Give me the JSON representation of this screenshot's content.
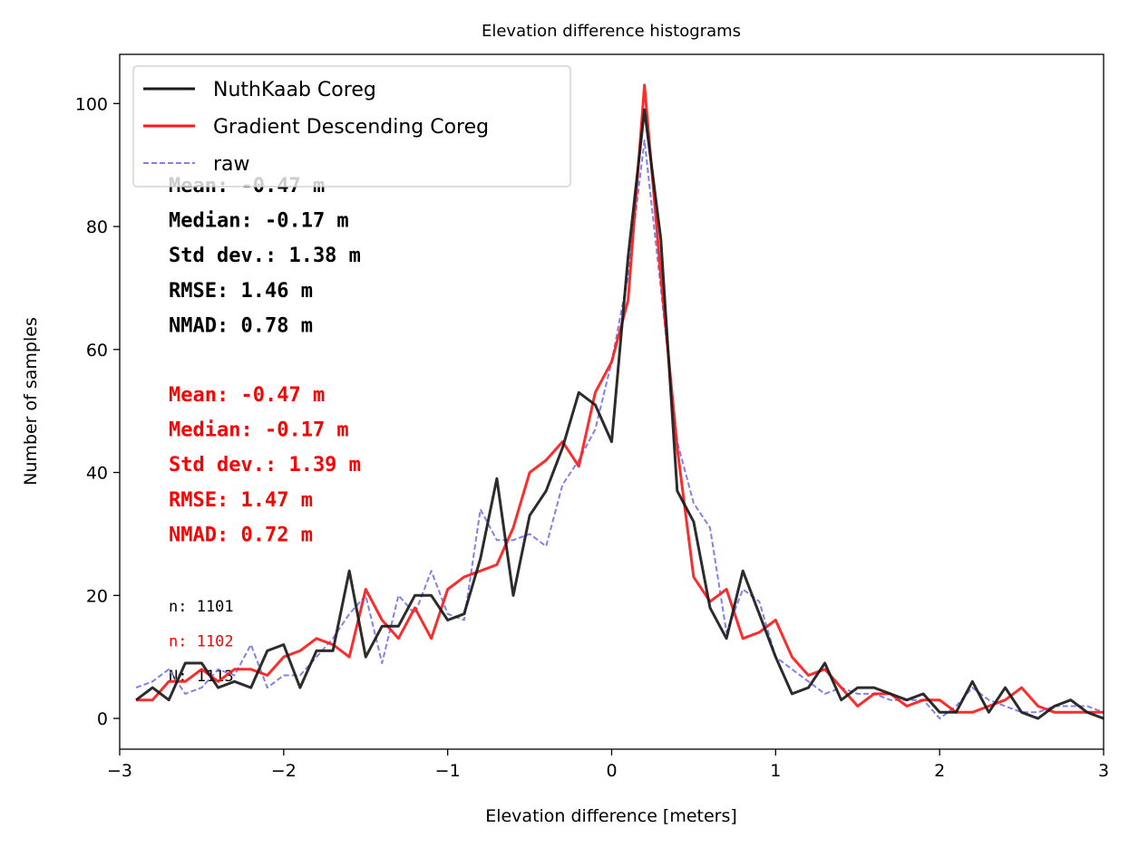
{
  "chart_data": {
    "type": "line",
    "title": "Elevation difference histograms",
    "xlabel": "Elevation difference [meters]",
    "ylabel": "Number of samples",
    "xlim": [
      -3,
      3
    ],
    "ylim": [
      -5,
      108
    ],
    "xticks": [
      -3,
      -2,
      -1,
      0,
      1,
      2,
      3
    ],
    "xtick_labels": [
      "−3",
      "−2",
      "−1",
      "0",
      "1",
      "2",
      "3"
    ],
    "yticks": [
      0,
      20,
      40,
      60,
      80,
      100
    ],
    "ytick_labels": [
      "0",
      "20",
      "40",
      "60",
      "80",
      "100"
    ],
    "grid": false,
    "legend_position": "top-left",
    "x": [
      -2.9,
      -2.8,
      -2.7,
      -2.6,
      -2.5,
      -2.4,
      -2.3,
      -2.2,
      -2.1,
      -2.0,
      -1.9,
      -1.8,
      -1.7,
      -1.6,
      -1.5,
      -1.4,
      -1.3,
      -1.2,
      -1.1,
      -1.0,
      -0.9,
      -0.8,
      -0.7,
      -0.6,
      -0.5,
      -0.4,
      -0.3,
      -0.2,
      -0.1,
      0.0,
      0.1,
      0.2,
      0.3,
      0.4,
      0.5,
      0.6,
      0.7,
      0.8,
      0.9,
      1.0,
      1.1,
      1.2,
      1.3,
      1.4,
      1.5,
      1.6,
      1.7,
      1.8,
      1.9,
      2.0,
      2.1,
      2.2,
      2.3,
      2.4,
      2.5,
      2.6,
      2.7,
      2.8,
      2.9,
      3.0
    ],
    "series": [
      {
        "name": "NuthKaab Coreg",
        "color": "#1a1a1a",
        "style": "solid",
        "values": [
          3,
          5,
          3,
          9,
          9,
          5,
          6,
          5,
          11,
          12,
          5,
          11,
          11,
          24,
          10,
          15,
          15,
          20,
          20,
          16,
          17,
          26,
          39,
          20,
          33,
          37,
          44,
          53,
          51,
          45,
          75,
          99,
          78,
          37,
          32,
          18,
          13,
          24,
          17,
          10,
          4,
          5,
          9,
          3,
          5,
          5,
          4,
          3,
          4,
          1,
          1,
          6,
          1,
          5,
          1,
          0,
          2,
          3,
          1,
          0
        ]
      },
      {
        "name": "Gradient Descending Coreg",
        "color": "#ff1a1a",
        "style": "solid",
        "values": [
          3,
          3,
          6,
          6,
          8,
          6,
          8,
          8,
          7,
          10,
          11,
          13,
          12,
          10,
          21,
          16,
          13,
          18,
          13,
          21,
          23,
          24,
          25,
          31,
          40,
          42,
          45,
          41,
          53,
          58,
          68,
          103,
          72,
          44,
          23,
          19,
          21,
          13,
          14,
          16,
          10,
          7,
          8,
          5,
          2,
          4,
          4,
          2,
          3,
          3,
          1,
          1,
          2,
          3,
          5,
          2,
          1,
          1,
          1,
          1
        ]
      },
      {
        "name": "raw",
        "color": "#8080ee",
        "style": "dashed",
        "values": [
          5,
          6,
          8,
          4,
          5,
          8,
          7,
          12,
          5,
          7,
          7,
          10,
          13,
          17,
          20,
          9,
          20,
          17,
          24,
          17,
          16,
          34,
          29,
          29,
          30,
          28,
          38,
          42,
          47,
          58,
          72,
          94,
          70,
          45,
          35,
          31,
          14,
          21,
          19,
          10,
          8,
          6,
          4,
          5,
          4,
          4,
          3,
          3,
          3,
          0,
          2,
          5,
          3,
          2,
          1,
          1,
          2,
          2,
          2,
          1
        ]
      }
    ],
    "annotations": {
      "black_stats": [
        "Mean: -0.47 m",
        "Median: -0.17 m",
        "Std dev.: 1.38 m",
        "RMSE: 1.46 m",
        "NMAD: 0.78 m"
      ],
      "red_stats": [
        "Mean: -0.47 m",
        "Median: -0.17 m",
        "Std dev.: 1.39 m",
        "RMSE: 1.47 m",
        "NMAD: 0.72 m"
      ],
      "counts": [
        {
          "text": "n: 1101",
          "color": "#000000"
        },
        {
          "text": "n: 1102",
          "color": "#ff0000"
        },
        {
          "text": "N: 1113",
          "color": "#000000"
        }
      ]
    }
  }
}
